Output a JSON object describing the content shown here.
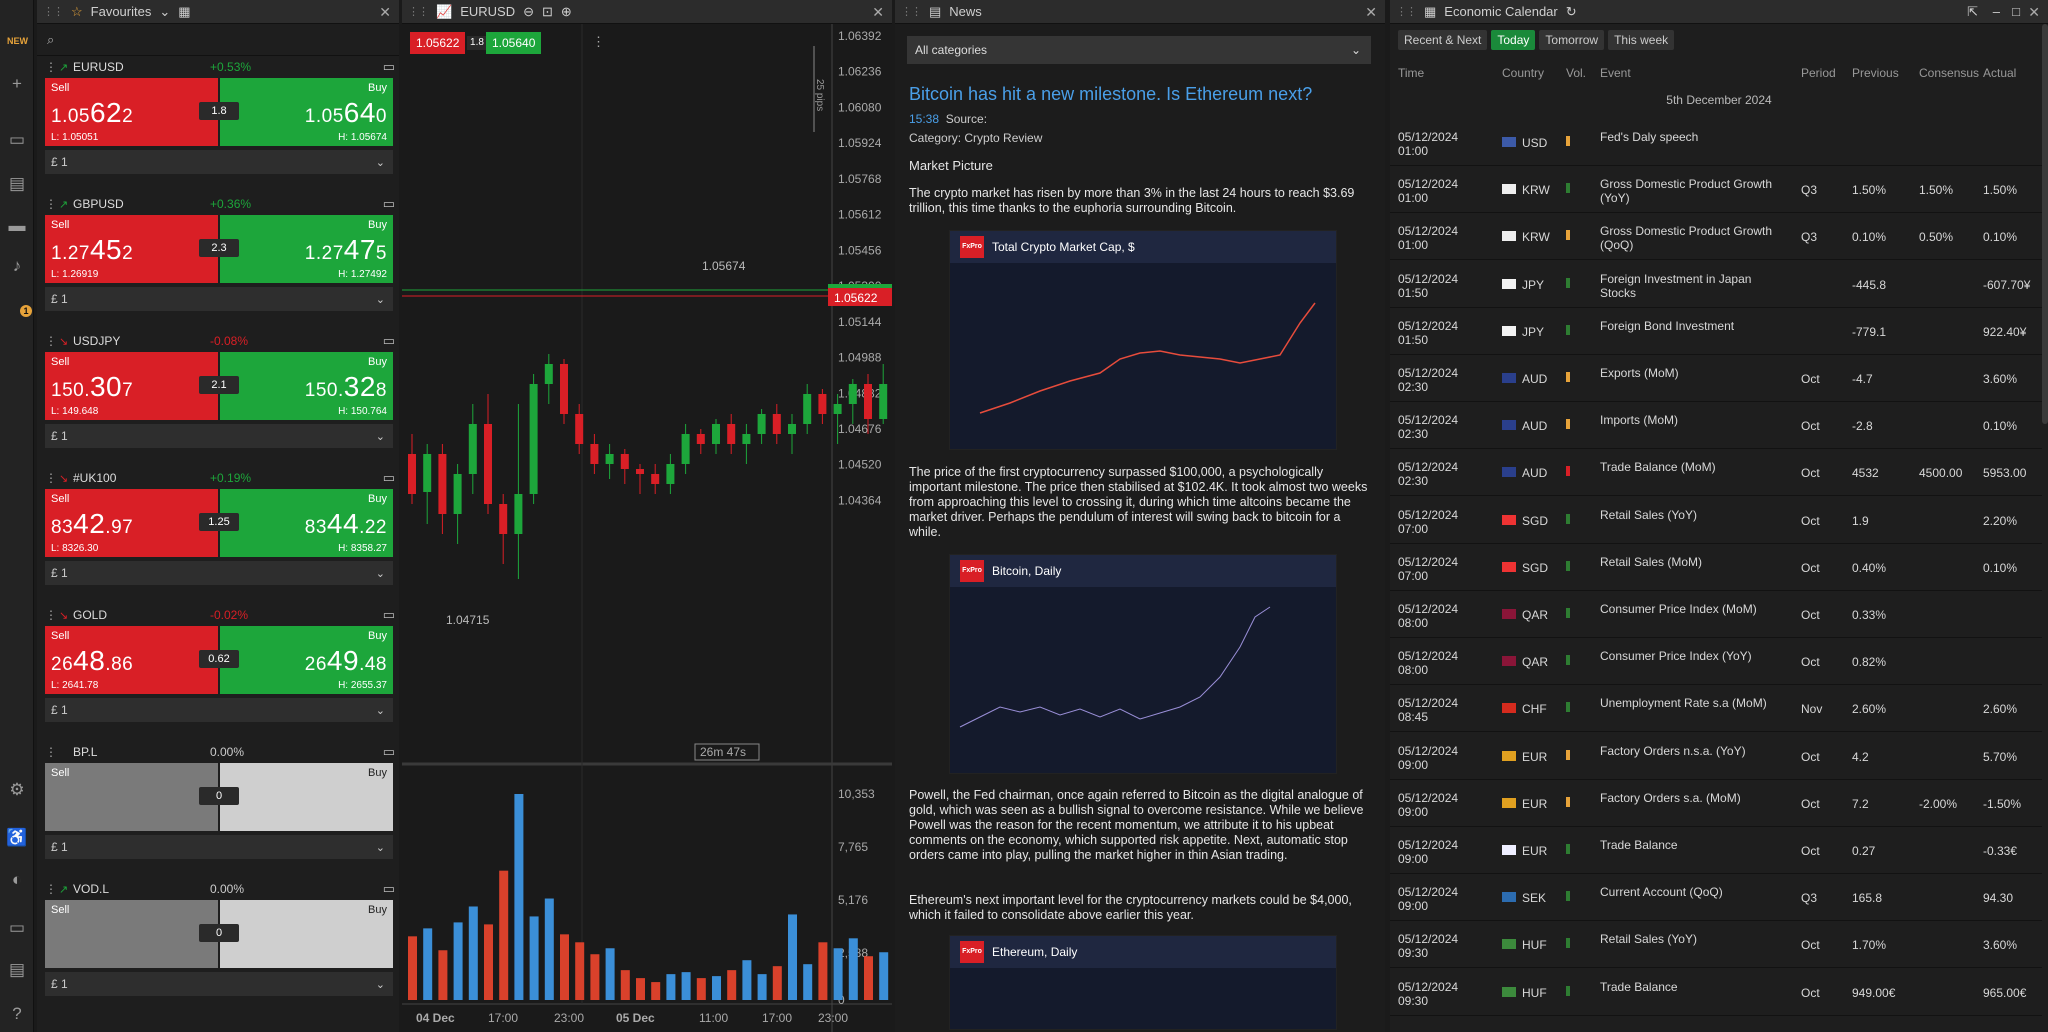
{
  "rail": {
    "new_label": "NEW",
    "badge": "1"
  },
  "favourites": {
    "title": "Favourites",
    "instruments": [
      {
        "name": "EURUSD",
        "dir": "up",
        "change": "+0.53%",
        "sell_label": "Sell",
        "buy_label": "Buy",
        "sell_a": "1.05",
        "sell_b": "62",
        "sell_c": "2",
        "buy_a": "1.05",
        "buy_b": "64",
        "buy_c": "0",
        "spread": "1.8",
        "low": "L: 1.05051",
        "high": "H: 1.05674",
        "qty": "£ 1"
      },
      {
        "name": "GBPUSD",
        "dir": "up",
        "change": "+0.36%",
        "sell_label": "Sell",
        "buy_label": "Buy",
        "sell_a": "1.27",
        "sell_b": "45",
        "sell_c": "2",
        "buy_a": "1.27",
        "buy_b": "47",
        "buy_c": "5",
        "spread": "2.3",
        "low": "L: 1.26919",
        "high": "H: 1.27492",
        "qty": "£ 1"
      },
      {
        "name": "USDJPY",
        "dir": "down",
        "change": "-0.08%",
        "sell_label": "Sell",
        "buy_label": "Buy",
        "sell_a": "150.",
        "sell_b": "30",
        "sell_c": "7",
        "buy_a": "150.",
        "buy_b": "32",
        "buy_c": "8",
        "spread": "2.1",
        "low": "L: 149.648",
        "high": "H: 150.764",
        "qty": "£ 1"
      },
      {
        "name": "#UK100",
        "dir": "down",
        "change": "+0.19%",
        "sell_label": "Sell",
        "buy_label": "Buy",
        "sell_a": "83",
        "sell_b": "42",
        "sell_c": ".97",
        "buy_a": "83",
        "buy_b": "44",
        "buy_c": ".22",
        "spread": "1.25",
        "low": "L: 8326.30",
        "high": "H: 8358.27",
        "qty": "£ 1"
      },
      {
        "name": "GOLD",
        "dir": "down",
        "change": "-0.02%",
        "sell_label": "Sell",
        "buy_label": "Buy",
        "sell_a": "26",
        "sell_b": "48",
        "sell_c": ".86",
        "buy_a": "26",
        "buy_b": "49",
        "buy_c": ".48",
        "spread": "0.62",
        "low": "L: 2641.78",
        "high": "H: 2655.37",
        "qty": "£ 1"
      },
      {
        "name": "BP.L",
        "dir": "",
        "change": "0.00%",
        "sell_label": "Sell",
        "buy_label": "Buy",
        "spread": "0",
        "qty": "£ 1",
        "grey": true
      },
      {
        "name": "VOD.L",
        "dir": "up",
        "change": "0.00%",
        "sell_label": "Sell",
        "buy_label": "Buy",
        "spread": "0",
        "qty": "£ 1",
        "grey": true
      }
    ]
  },
  "chart": {
    "symbol": "EURUSD",
    "bid": "1.05622",
    "spread": "1.8",
    "ask": "1.05640",
    "pips": "25 pips",
    "countdown": "26m 47s",
    "high_label": "1.05674",
    "low_label": "1.04715",
    "price_tag": "1.05622",
    "price_tag2": "1.05640",
    "price_ticks": [
      "1.06392",
      "1.06236",
      "1.06080",
      "1.05924",
      "1.05768",
      "1.05612",
      "1.05456",
      "1.05300",
      "1.05144",
      "1.04988",
      "1.04832",
      "1.04676",
      "1.04520",
      "1.04364"
    ],
    "vol_ticks": [
      "10,353",
      "7,765",
      "5,176",
      "2,588",
      "0"
    ],
    "time_ticks": [
      "04 Dec",
      "17:00",
      "23:00",
      "05 Dec",
      "11:00",
      "17:00",
      "23:00"
    ]
  },
  "chart_data": {
    "type": "bar",
    "title": "EURUSD",
    "series": [
      {
        "name": "Volume",
        "values": [
          3200,
          3600,
          2500,
          3900,
          4700,
          3800,
          6500,
          10353,
          4200,
          5100,
          3300,
          2900,
          2300,
          2600,
          1500,
          1100,
          900,
          1300,
          1400,
          1100,
          1200,
          1500,
          2000,
          1300,
          1700,
          4300,
          1800,
          2900,
          2600,
          3100,
          2200,
          2400,
          3500,
          3600,
          3400
        ]
      }
    ],
    "ylim": [
      0,
      10353
    ]
  },
  "news": {
    "title": "News",
    "category": "All categories",
    "headline": "Bitcoin has hit a new milestone. Is Ethereum next?",
    "time": "15:38",
    "source": "Source:",
    "category_line": "Category: Crypto Review",
    "section": "Market Picture",
    "p1": "The crypto market has risen by more than 3% in the last 24 hours to reach $3.69 trillion, this time thanks to the euphoria surrounding Bitcoin.",
    "img1": "Total Crypto Market Cap, $",
    "p2": "The price of the first cryptocurrency surpassed $100,000, a psychologically important milestone. The price then stabilised at $102.4K. It took almost two weeks from approaching this level to crossing it, during which time altcoins became the market driver. Perhaps the pendulum of interest will swing back to bitcoin for a while.",
    "img2": "Bitcoin, Daily",
    "p3": "Powell, the Fed chairman, once again referred to Bitcoin as the digital analogue of gold, which was seen as a bullish signal to overcome resistance. While we believe Powell was the reason for the recent momentum, we attribute it to his upbeat comments on the economy, which supported risk appetite. Next, automatic stop orders came into play, pulling the market higher in thin Asian trading.",
    "p4": "Ethereum's next important level for the cryptocurrency markets could be $4,000, which it failed to consolidate above earlier this year.",
    "img3": "Ethereum, Daily",
    "logo": "FxPro"
  },
  "calendar": {
    "title": "Economic Calendar",
    "tabs": [
      "Recent & Next",
      "Today",
      "Tomorrow",
      "This week"
    ],
    "headers": [
      "Time",
      "Country",
      "Vol.",
      "Event",
      "Period",
      "Previous",
      "Consensus",
      "Actual"
    ],
    "day": "5th December 2024",
    "rows": [
      {
        "date": "05/12/2024",
        "time": "01:00",
        "cur": "USD",
        "flag": "#3c5aa8",
        "vol": "#e7a33a",
        "event": "Fed's Daly speech",
        "period": "",
        "prev": "",
        "cons": "",
        "act": ""
      },
      {
        "date": "05/12/2024",
        "time": "01:00",
        "cur": "KRW",
        "flag": "#eeeeee",
        "vol": "#2e7d32",
        "event": "Gross Domestic Product Growth (YoY)",
        "period": "Q3",
        "prev": "1.50%",
        "cons": "1.50%",
        "act": "1.50%"
      },
      {
        "date": "05/12/2024",
        "time": "01:00",
        "cur": "KRW",
        "flag": "#eeeeee",
        "vol": "#e7a33a",
        "event": "Gross Domestic Product Growth (QoQ)",
        "period": "Q3",
        "prev": "0.10%",
        "cons": "0.50%",
        "act": "0.10%"
      },
      {
        "date": "05/12/2024",
        "time": "01:50",
        "cur": "JPY",
        "flag": "#f2f2f2",
        "vol": "#2e7d32",
        "event": "Foreign Investment in Japan Stocks",
        "period": "",
        "prev": "-445.8",
        "cons": "",
        "act": "-607.70¥"
      },
      {
        "date": "05/12/2024",
        "time": "01:50",
        "cur": "JPY",
        "flag": "#f2f2f2",
        "vol": "#2e7d32",
        "event": "Foreign Bond Investment",
        "period": "",
        "prev": "-779.1",
        "cons": "",
        "act": "922.40¥"
      },
      {
        "date": "05/12/2024",
        "time": "02:30",
        "cur": "AUD",
        "flag": "#2a3f8c",
        "vol": "#e7a33a",
        "event": "Exports (MoM)",
        "period": "Oct",
        "prev": "-4.7",
        "cons": "",
        "act": "3.60%"
      },
      {
        "date": "05/12/2024",
        "time": "02:30",
        "cur": "AUD",
        "flag": "#2a3f8c",
        "vol": "#e7a33a",
        "event": "Imports (MoM)",
        "period": "Oct",
        "prev": "-2.8",
        "cons": "",
        "act": "0.10%"
      },
      {
        "date": "05/12/2024",
        "time": "02:30",
        "cur": "AUD",
        "flag": "#2a3f8c",
        "vol": "#d91f26",
        "event": "Trade Balance (MoM)",
        "period": "Oct",
        "prev": "4532",
        "cons": "4500.00",
        "act": "5953.00"
      },
      {
        "date": "05/12/2024",
        "time": "07:00",
        "cur": "SGD",
        "flag": "#e33",
        "vol": "#2e7d32",
        "event": "Retail Sales (YoY)",
        "period": "Oct",
        "prev": "1.9",
        "cons": "",
        "act": "2.20%"
      },
      {
        "date": "05/12/2024",
        "time": "07:00",
        "cur": "SGD",
        "flag": "#e33",
        "vol": "#2e7d32",
        "event": "Retail Sales (MoM)",
        "period": "Oct",
        "prev": "0.40%",
        "cons": "",
        "act": "0.10%"
      },
      {
        "date": "05/12/2024",
        "time": "08:00",
        "cur": "QAR",
        "flag": "#8a1538",
        "vol": "#2e7d32",
        "event": "Consumer Price Index (MoM)",
        "period": "Oct",
        "prev": "0.33%",
        "cons": "",
        "act": ""
      },
      {
        "date": "05/12/2024",
        "time": "08:00",
        "cur": "QAR",
        "flag": "#8a1538",
        "vol": "#2e7d32",
        "event": "Consumer Price Index (YoY)",
        "period": "Oct",
        "prev": "0.82%",
        "cons": "",
        "act": ""
      },
      {
        "date": "05/12/2024",
        "time": "08:45",
        "cur": "CHF",
        "flag": "#d52b1e",
        "vol": "#2e7d32",
        "event": "Unemployment Rate s.a (MoM)",
        "period": "Nov",
        "prev": "2.60%",
        "cons": "",
        "act": "2.60%"
      },
      {
        "date": "05/12/2024",
        "time": "09:00",
        "cur": "EUR",
        "flag": "#e0a020",
        "vol": "#e7a33a",
        "event": "Factory Orders n.s.a. (YoY)",
        "period": "Oct",
        "prev": "4.2",
        "cons": "",
        "act": "5.70%"
      },
      {
        "date": "05/12/2024",
        "time": "09:00",
        "cur": "EUR",
        "flag": "#e0a020",
        "vol": "#e7a33a",
        "event": "Factory Orders s.a. (MoM)",
        "period": "Oct",
        "prev": "7.2",
        "cons": "-2.00%",
        "act": "-1.50%"
      },
      {
        "date": "05/12/2024",
        "time": "09:00",
        "cur": "EUR",
        "flag": "#eef",
        "vol": "#2e7d32",
        "event": "Trade Balance",
        "period": "Oct",
        "prev": "0.27",
        "cons": "",
        "act": "-0.33€"
      },
      {
        "date": "05/12/2024",
        "time": "09:00",
        "cur": "SEK",
        "flag": "#2c6cb0",
        "vol": "#2e7d32",
        "event": "Current Account (QoQ)",
        "period": "Q3",
        "prev": "165.8",
        "cons": "",
        "act": "94.30"
      },
      {
        "date": "05/12/2024",
        "time": "09:30",
        "cur": "HUF",
        "flag": "#3c8a3c",
        "vol": "#2e7d32",
        "event": "Retail Sales (YoY)",
        "period": "Oct",
        "prev": "1.70%",
        "cons": "",
        "act": "3.60%"
      },
      {
        "date": "05/12/2024",
        "time": "09:30",
        "cur": "HUF",
        "flag": "#3c8a3c",
        "vol": "#2e7d32",
        "event": "Trade Balance",
        "period": "Oct",
        "prev": "949.00€",
        "cons": "",
        "act": "965.00€"
      }
    ]
  }
}
